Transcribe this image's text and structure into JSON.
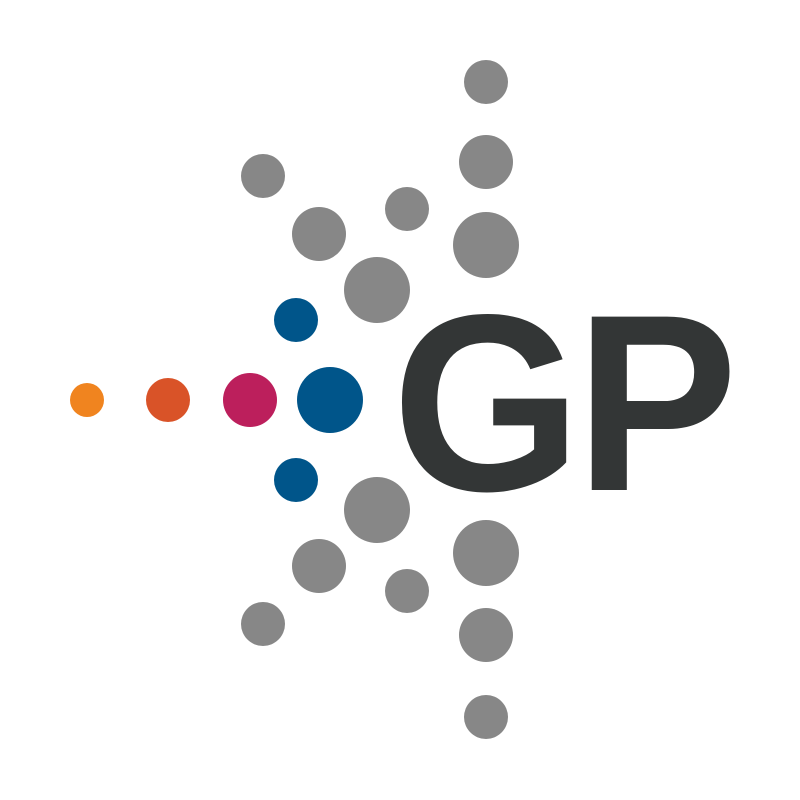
{
  "logo": {
    "wordmark": "GP",
    "colors": {
      "background": "#ffffff",
      "wordmark": "#333636",
      "gray_dots": "#878787",
      "blue": "#00558a",
      "magenta": "#bc1f5c",
      "red_orange": "#d95328",
      "orange": "#f0841f"
    }
  }
}
